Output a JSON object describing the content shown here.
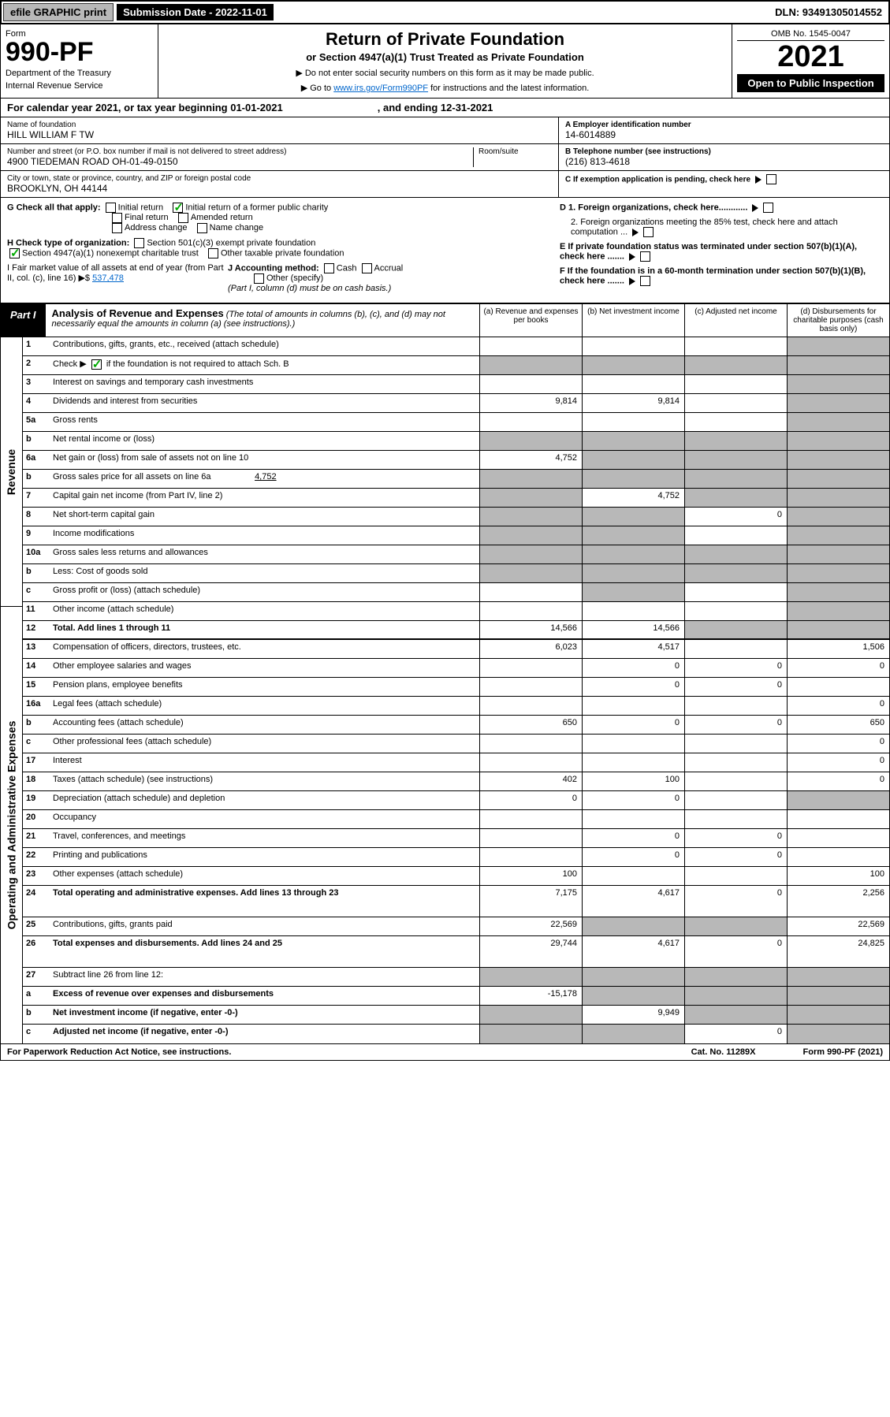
{
  "topbar": {
    "efile": "efile GRAPHIC print",
    "subdate": "Submission Date - 2022-11-01",
    "dln": "DLN: 93491305014552"
  },
  "header": {
    "form_label": "Form",
    "form_num": "990-PF",
    "dept": "Department of the Treasury",
    "irs": "Internal Revenue Service",
    "title": "Return of Private Foundation",
    "subtitle": "or Section 4947(a)(1) Trust Treated as Private Foundation",
    "instr1": "▶ Do not enter social security numbers on this form as it may be made public.",
    "instr2": "▶ Go to ",
    "instr_link": "www.irs.gov/Form990PF",
    "instr3": " for instructions and the latest information.",
    "omb": "OMB No. 1545-0047",
    "year": "2021",
    "open": "Open to Public Inspection"
  },
  "calyear": {
    "a": "For calendar year 2021, or tax year beginning 01-01-2021",
    "b": ", and ending 12-31-2021"
  },
  "info": {
    "name_lbl": "Name of foundation",
    "name": "HILL WILLIAM F TW",
    "addr_lbl": "Number and street (or P.O. box number if mail is not delivered to street address)",
    "addr": "4900 TIEDEMAN ROAD OH-01-49-0150",
    "room": "Room/suite",
    "city_lbl": "City or town, state or province, country, and ZIP or foreign postal code",
    "city": "BROOKLYN, OH  44144",
    "ein_lbl": "A Employer identification number",
    "ein": "14-6014889",
    "tel_lbl": "B Telephone number (see instructions)",
    "tel": "(216) 813-4618",
    "c": "C If exemption application is pending, check here",
    "d1": "D 1. Foreign organizations, check here............",
    "d2": "2. Foreign organizations meeting the 85% test, check here and attach computation ...",
    "e": "E  If private foundation status was terminated under section 507(b)(1)(A), check here .......",
    "f": "F  If the foundation is in a 60-month termination under section 507(b)(1)(B), check here ......."
  },
  "g": {
    "label": "G Check all that apply:",
    "init": "Initial return",
    "initpub": "Initial return of a former public charity",
    "final": "Final return",
    "amend": "Amended return",
    "addr": "Address change",
    "name": "Name change"
  },
  "h": {
    "label": "H Check type of organization:",
    "s501": "Section 501(c)(3) exempt private foundation",
    "s4947": "Section 4947(a)(1) nonexempt charitable trust",
    "other": "Other taxable private foundation"
  },
  "i": {
    "label": "I Fair market value of all assets at end of year (from Part II, col. (c), line 16) ▶$",
    "val": "537,478"
  },
  "j": {
    "label": "J Accounting method:",
    "cash": "Cash",
    "accrual": "Accrual",
    "other": "Other (specify)",
    "note": "(Part I, column (d) must be on cash basis.)"
  },
  "part1": {
    "tag": "Part I",
    "title": "Analysis of Revenue and Expenses",
    "note": "(The total of amounts in columns (b), (c), and (d) may not necessarily equal the amounts in column (a) (see instructions).)",
    "cola": "(a)   Revenue and expenses per books",
    "colb": "(b)   Net investment income",
    "colc": "(c)   Adjusted net income",
    "cold": "(d)   Disbursements for charitable purposes (cash basis only)"
  },
  "rot": {
    "rev": "Revenue",
    "exp": "Operating and Administrative Expenses"
  },
  "rows": {
    "r1": "Contributions, gifts, grants, etc., received (attach schedule)",
    "r2a": "Check ▶",
    "r2b": " if the foundation is not required to attach Sch. B",
    "r3": "Interest on savings and temporary cash investments",
    "r4": "Dividends and interest from securities",
    "r5a": "Gross rents",
    "r5b": "Net rental income or (loss)",
    "r6a": "Net gain or (loss) from sale of assets not on line 10",
    "r6b": "Gross sales price for all assets on line 6a",
    "r6bval": "4,752",
    "r7": "Capital gain net income (from Part IV, line 2)",
    "r8": "Net short-term capital gain",
    "r9": "Income modifications",
    "r10a": "Gross sales less returns and allowances",
    "r10b": "Less: Cost of goods sold",
    "r10c": "Gross profit or (loss) (attach schedule)",
    "r11": "Other income (attach schedule)",
    "r12": "Total. Add lines 1 through 11",
    "r13": "Compensation of officers, directors, trustees, etc.",
    "r14": "Other employee salaries and wages",
    "r15": "Pension plans, employee benefits",
    "r16a": "Legal fees (attach schedule)",
    "r16b": "Accounting fees (attach schedule)",
    "r16c": "Other professional fees (attach schedule)",
    "r17": "Interest",
    "r18": "Taxes (attach schedule) (see instructions)",
    "r19": "Depreciation (attach schedule) and depletion",
    "r20": "Occupancy",
    "r21": "Travel, conferences, and meetings",
    "r22": "Printing and publications",
    "r23": "Other expenses (attach schedule)",
    "r24": "Total operating and administrative expenses. Add lines 13 through 23",
    "r25": "Contributions, gifts, grants paid",
    "r26": "Total expenses and disbursements. Add lines 24 and 25",
    "r27": "Subtract line 26 from line 12:",
    "r27a": "Excess of revenue over expenses and disbursements",
    "r27b": "Net investment income (if negative, enter -0-)",
    "r27c": "Adjusted net income (if negative, enter -0-)"
  },
  "vals": {
    "r4": {
      "a": "9,814",
      "b": "9,814"
    },
    "r6a": {
      "a": "4,752"
    },
    "r7": {
      "b": "4,752"
    },
    "r8": {
      "c": "0"
    },
    "r12": {
      "a": "14,566",
      "b": "14,566"
    },
    "r13": {
      "a": "6,023",
      "b": "4,517",
      "d": "1,506"
    },
    "r14": {
      "b": "0",
      "c": "0",
      "d": "0"
    },
    "r15": {
      "b": "0",
      "c": "0"
    },
    "r16a": {
      "d": "0"
    },
    "r16b": {
      "a": "650",
      "b": "0",
      "c": "0",
      "d": "650"
    },
    "r16c": {
      "d": "0"
    },
    "r17": {
      "d": "0"
    },
    "r18": {
      "a": "402",
      "b": "100",
      "d": "0"
    },
    "r19": {
      "a": "0",
      "b": "0"
    },
    "r21": {
      "b": "0",
      "c": "0"
    },
    "r22": {
      "b": "0",
      "c": "0"
    },
    "r23": {
      "a": "100",
      "d": "100"
    },
    "r24": {
      "a": "7,175",
      "b": "4,617",
      "c": "0",
      "d": "2,256"
    },
    "r25": {
      "a": "22,569",
      "d": "22,569"
    },
    "r26": {
      "a": "29,744",
      "b": "4,617",
      "c": "0",
      "d": "24,825"
    },
    "r27a": {
      "a": "-15,178"
    },
    "r27b": {
      "b": "9,949"
    },
    "r27c": {
      "c": "0"
    }
  },
  "footer": {
    "l": "For Paperwork Reduction Act Notice, see instructions.",
    "m": "Cat. No. 11289X",
    "r": "Form 990-PF (2021)"
  }
}
